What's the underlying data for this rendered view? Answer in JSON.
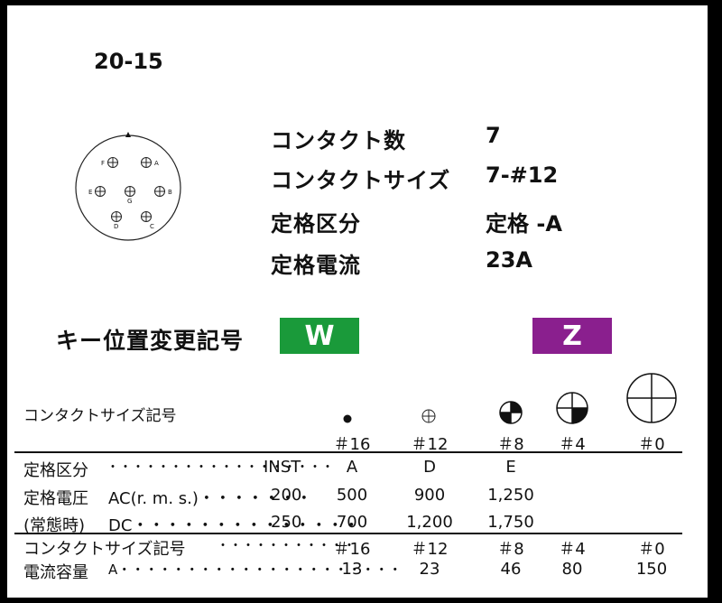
{
  "title": "20-15",
  "connector_labels": [
    "F",
    "A",
    "E",
    "G",
    "B",
    "D",
    "C"
  ],
  "specs": [
    {
      "label": "コンタクト数",
      "value": "7"
    },
    {
      "label": "コンタクトサイズ",
      "value": "7-#12"
    },
    {
      "label": "定格区分",
      "value": "定格 -A"
    },
    {
      "label": "定格電流",
      "value": "23A"
    }
  ],
  "key": {
    "label": "キー位置変更記号",
    "w": {
      "text": "W",
      "color": "#1a9a3a"
    },
    "z": {
      "text": "Z",
      "color": "#8a1f8e"
    }
  },
  "table": {
    "size_header": "コンタクトサイズ記号",
    "sizes": [
      "＃16",
      "＃12",
      "＃8",
      "＃4",
      "＃0"
    ],
    "rating_row": {
      "label": "定格区分",
      "leader": "・・・・・・・・・・・・・・・・・・",
      "inst": "INST",
      "values": [
        "A",
        "D",
        "E"
      ]
    },
    "ac_row": {
      "label": "定格電圧",
      "sub": "AC(r. m. s.)・・・・・・・",
      "inst": "200",
      "values": [
        "500",
        "900",
        "1,250"
      ]
    },
    "dc_row": {
      "label": "(常態時)",
      "sub": "DC・・・・・・・・・・・・・・",
      "inst": "250",
      "values": [
        "700",
        "1,200",
        "1,750"
      ]
    },
    "size_row": {
      "label": "コンタクトサイズ記号",
      "leader": "・・・・・・・・・・・",
      "values": [
        "＃16",
        "＃12",
        "＃8",
        "＃4",
        "＃0"
      ]
    },
    "current_row": {
      "label": "電流容量",
      "sub": "A・・・・・・・・・・・・・・・・・・・・・",
      "values": [
        "13",
        "23",
        "46",
        "80",
        "150"
      ]
    }
  }
}
